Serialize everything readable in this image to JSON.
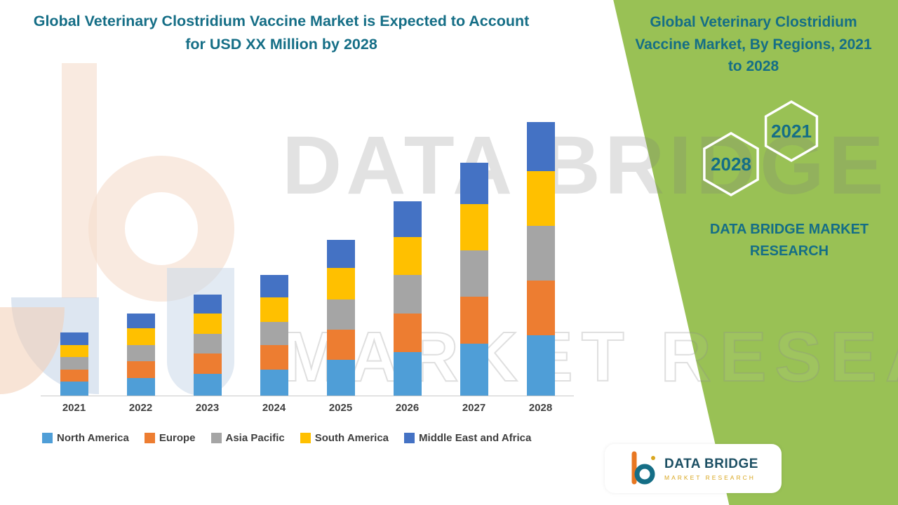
{
  "header": {
    "title": "Global Veterinary Clostridium Vaccine Market is Expected to Account for USD XX Million by 2028"
  },
  "side_panel": {
    "title": "Global Veterinary Clostridium Vaccine Market, By Regions, 2021 to 2028",
    "hexagon_year_right": "2021",
    "hexagon_year_left": "2028",
    "brand_text": "DATA BRIDGE MARKET RESEARCH",
    "panel_color": "#99C155",
    "accent_teal": "#156E86"
  },
  "watermark": {
    "line1": "DATA BRIDGE",
    "line2": "MARKET RESEARCH"
  },
  "logo": {
    "name": "DATA BRIDGE",
    "tagline": "MARKET RESEARCH"
  },
  "chart_data": {
    "type": "bar",
    "stacked": true,
    "title": "Global Veterinary Clostridium Vaccine Market is Expected to Account for USD XX Million by 2028",
    "categories": [
      "2021",
      "2022",
      "2023",
      "2024",
      "2025",
      "2026",
      "2027",
      "2028"
    ],
    "series": [
      {
        "name": "North America",
        "color": "#4F9ED7",
        "values": [
          5,
          6.5,
          8,
          9.5,
          13,
          16,
          19,
          22
        ]
      },
      {
        "name": "Europe",
        "color": "#ED7D31",
        "values": [
          4.5,
          6,
          7.5,
          9,
          11,
          14,
          17,
          20
        ]
      },
      {
        "name": "Asia Pacific",
        "color": "#A5A5A5",
        "values": [
          4.5,
          6,
          7,
          8.5,
          11,
          14,
          17,
          20
        ]
      },
      {
        "name": "South America",
        "color": "#FFC000",
        "values": [
          4.5,
          6,
          7.5,
          9,
          11.5,
          14,
          17,
          20
        ]
      },
      {
        "name": "Middle East and Africa",
        "color": "#4472C4",
        "values": [
          4.5,
          5.5,
          7,
          8,
          10.5,
          13,
          15,
          18
        ]
      }
    ],
    "ylim": [
      0,
      104
    ],
    "xlabel": "",
    "ylabel": "",
    "legend_position": "bottom",
    "grid": false,
    "y_axis_visible": false
  }
}
